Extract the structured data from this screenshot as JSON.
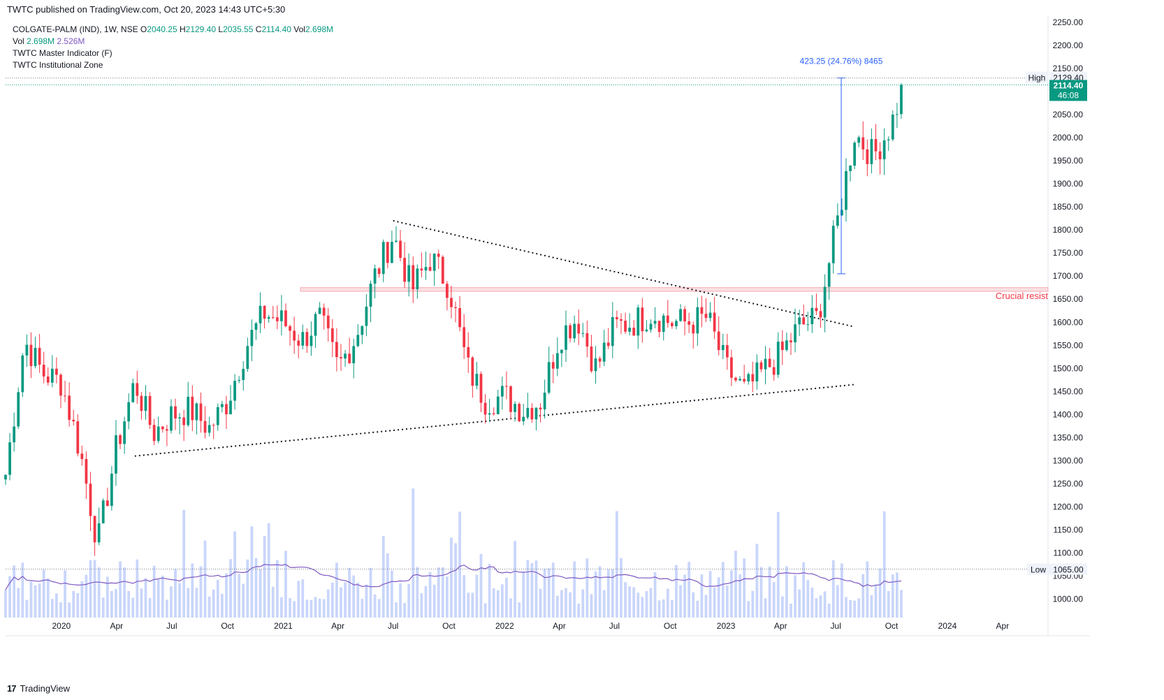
{
  "header": {
    "publisher": "TWTC published on TradingView.com, Oct 20, 2023 14:43 UTC+5:30"
  },
  "legend": {
    "symbol": "COLGATE-PALM (IND), 1W, NSE",
    "ohlc": [
      {
        "k": "O",
        "v": "2040.25"
      },
      {
        "k": "H",
        "v": "2129.40"
      },
      {
        "k": "L",
        "v": "2035.55"
      },
      {
        "k": "C",
        "v": "2114.40"
      },
      {
        "k": "Vol",
        "v": "2.698M"
      }
    ],
    "vol_label": "Vol",
    "vol_value": "2.698M",
    "vol_ma": "2.526M",
    "indicators": [
      "TWTC Master Indicator (F)",
      "TWTC Institutional Zone"
    ]
  },
  "footer": {
    "brand": "TradingView"
  },
  "colors": {
    "up": "#089981",
    "down": "#f23645",
    "volume": "#c9d6fb",
    "vol_ma": "#7e57c2",
    "annot": "#2962ff",
    "resist": "#f23645"
  },
  "chart_data": {
    "type": "candlestick",
    "y_ticks": [
      1000,
      1050,
      1100,
      1150,
      1200,
      1250,
      1300,
      1350,
      1400,
      1450,
      1500,
      1550,
      1600,
      1650,
      1700,
      1750,
      1800,
      1850,
      1900,
      1950,
      2000,
      2050,
      2100,
      2150,
      2200,
      2250
    ],
    "y_tick_labels": [
      "1000.00",
      "1050.00",
      "1100.00",
      "1150.00",
      "1200.00",
      "1250.00",
      "1300.00",
      "1350.00",
      "1400.00",
      "1450.00",
      "1500.00",
      "1550.00",
      "1600.00",
      "1650.00",
      "1700.00",
      "1750.00",
      "1800.00",
      "1850.00",
      "1900.00",
      "1950.00",
      "2000.00",
      "2050.00",
      "2100.00",
      "2150.00",
      "2200.00",
      "2250.00"
    ],
    "ylim": [
      960,
      2265
    ],
    "x_labels": [
      {
        "label": "2020",
        "date": "2020-01"
      },
      {
        "label": "Apr",
        "date": "2020-04"
      },
      {
        "label": "Jul",
        "date": "2020-07"
      },
      {
        "label": "Oct",
        "date": "2020-10"
      },
      {
        "label": "2021",
        "date": "2021-01"
      },
      {
        "label": "Apr",
        "date": "2021-04"
      },
      {
        "label": "Jul",
        "date": "2021-07"
      },
      {
        "label": "Oct",
        "date": "2021-10"
      },
      {
        "label": "2022",
        "date": "2022-01"
      },
      {
        "label": "Apr",
        "date": "2022-04"
      },
      {
        "label": "Jul",
        "date": "2022-07"
      },
      {
        "label": "Oct",
        "date": "2022-10"
      },
      {
        "label": "2023",
        "date": "2023-01"
      },
      {
        "label": "Apr",
        "date": "2023-04"
      },
      {
        "label": "Jul",
        "date": "2023-07"
      },
      {
        "label": "Oct",
        "date": "2023-10"
      },
      {
        "label": "2024",
        "date": "2024-01"
      },
      {
        "label": "Apr",
        "date": "2024-04"
      }
    ],
    "price_tags": {
      "high_label": "High",
      "high_value": "2129.40",
      "high": 2129.4,
      "last_value": "2114.40",
      "last": 2114.4,
      "countdown": "46:08",
      "low_label": "Low",
      "low_value": "1065.00",
      "low": 1065.0
    },
    "annotations": {
      "measure_text": "423.25 (24.76%) 8465",
      "measure_from": 1705.0,
      "measure_to": 2129.4,
      "resist_text": "Crucial resist",
      "resist_low": 1667,
      "resist_high": 1675
    },
    "trendlines": [
      {
        "from": [
          "2020-05",
          1310
        ],
        "to": [
          "2023-08",
          1465
        ]
      },
      {
        "from": [
          "2021-07",
          1820
        ],
        "to": [
          "2023-08",
          1590
        ]
      }
    ],
    "anchors": [
      [
        "2019-10",
        1270
      ],
      [
        "2019-11",
        1560
      ],
      [
        "2019-12",
        1490
      ],
      [
        "2020-01",
        1470
      ],
      [
        "2020-02",
        1320
      ],
      [
        "2020-03",
        1120
      ],
      [
        "2020-04",
        1330
      ],
      [
        "2020-05",
        1470
      ],
      [
        "2020-06",
        1360
      ],
      [
        "2020-07",
        1400
      ],
      [
        "2020-08",
        1410
      ],
      [
        "2020-09",
        1370
      ],
      [
        "2020-10",
        1430
      ],
      [
        "2020-11",
        1550
      ],
      [
        "2020-12",
        1620
      ],
      [
        "2021-01",
        1600
      ],
      [
        "2021-02",
        1560
      ],
      [
        "2021-03",
        1610
      ],
      [
        "2021-04",
        1500
      ],
      [
        "2021-05",
        1570
      ],
      [
        "2021-06",
        1700
      ],
      [
        "2021-07",
        1790
      ],
      [
        "2021-08",
        1670
      ],
      [
        "2021-09",
        1740
      ],
      [
        "2021-10",
        1680
      ],
      [
        "2021-11",
        1500
      ],
      [
        "2021-12",
        1430
      ],
      [
        "2022-01",
        1440
      ],
      [
        "2022-02",
        1410
      ],
      [
        "2022-03",
        1430
      ],
      [
        "2022-04",
        1570
      ],
      [
        "2022-05",
        1610
      ],
      [
        "2022-06",
        1500
      ],
      [
        "2022-07",
        1590
      ],
      [
        "2022-08",
        1600
      ],
      [
        "2022-09",
        1620
      ],
      [
        "2022-10",
        1600
      ],
      [
        "2022-11",
        1600
      ],
      [
        "2022-12",
        1610
      ],
      [
        "2023-01",
        1500
      ],
      [
        "2023-02",
        1450
      ],
      [
        "2023-03",
        1490
      ],
      [
        "2023-04",
        1530
      ],
      [
        "2023-05",
        1590
      ],
      [
        "2023-06",
        1610
      ],
      [
        "2023-07",
        1800
      ],
      [
        "2023-08",
        2010
      ],
      [
        "2023-09",
        1960
      ],
      [
        "2023-10",
        2030
      ],
      [
        "2023-10-20",
        2114
      ]
    ],
    "volume_range": [
      0,
      34
    ],
    "volume_unit": "M"
  }
}
